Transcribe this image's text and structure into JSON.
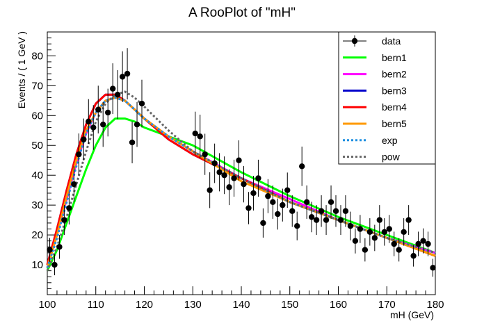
{
  "chart_data": {
    "type": "scatter",
    "title": "A RooPlot of \"mH\"",
    "xlabel": "mH (GeV)",
    "ylabel": "Events / ( 1 GeV )",
    "xlim": [
      100,
      180
    ],
    "ylim": [
      0,
      88
    ],
    "xticks": [
      100,
      110,
      120,
      130,
      140,
      150,
      160,
      170,
      180
    ],
    "yticks": [
      10,
      20,
      30,
      40,
      50,
      60,
      70,
      80
    ],
    "legend_position": "top-right",
    "data_points": [
      {
        "x": 100.5,
        "y": 15,
        "err": 4
      },
      {
        "x": 101.5,
        "y": 10,
        "err": 3.5
      },
      {
        "x": 102.5,
        "y": 16,
        "err": 4
      },
      {
        "x": 103.5,
        "y": 25,
        "err": 5
      },
      {
        "x": 104.5,
        "y": 29,
        "err": 5.5
      },
      {
        "x": 105.5,
        "y": 37,
        "err": 6
      },
      {
        "x": 106.5,
        "y": 47,
        "err": 7
      },
      {
        "x": 107.5,
        "y": 52,
        "err": 7
      },
      {
        "x": 108.5,
        "y": 58,
        "err": 7.5
      },
      {
        "x": 109.5,
        "y": 56,
        "err": 7.5
      },
      {
        "x": 110.5,
        "y": 62,
        "err": 8
      },
      {
        "x": 111.5,
        "y": 57,
        "err": 7.5
      },
      {
        "x": 112.5,
        "y": 61,
        "err": 8
      },
      {
        "x": 113.5,
        "y": 69,
        "err": 8.5
      },
      {
        "x": 114.5,
        "y": 67,
        "err": 8.2
      },
      {
        "x": 115.5,
        "y": 73,
        "err": 8.5
      },
      {
        "x": 116.5,
        "y": 74,
        "err": 8.6
      },
      {
        "x": 117.5,
        "y": 51,
        "err": 7
      },
      {
        "x": 118.5,
        "y": 57,
        "err": 7.5
      },
      {
        "x": 119.5,
        "y": 64,
        "err": 8
      },
      {
        "x": 130.5,
        "y": 54,
        "err": 7.3
      },
      {
        "x": 131.5,
        "y": 53,
        "err": 7.3
      },
      {
        "x": 132.5,
        "y": 47,
        "err": 6.9
      },
      {
        "x": 133.5,
        "y": 35,
        "err": 6
      },
      {
        "x": 134.5,
        "y": 44,
        "err": 6.6
      },
      {
        "x": 135.5,
        "y": 41,
        "err": 6.4
      },
      {
        "x": 136.5,
        "y": 40,
        "err": 6.3
      },
      {
        "x": 137.5,
        "y": 36,
        "err": 6
      },
      {
        "x": 138.5,
        "y": 39,
        "err": 6.2
      },
      {
        "x": 139.5,
        "y": 45,
        "err": 6.7
      },
      {
        "x": 140.5,
        "y": 37,
        "err": 6.1
      },
      {
        "x": 141.5,
        "y": 29,
        "err": 5.4
      },
      {
        "x": 142.5,
        "y": 34,
        "err": 5.8
      },
      {
        "x": 143.5,
        "y": 39,
        "err": 6.2
      },
      {
        "x": 144.5,
        "y": 24,
        "err": 4.9
      },
      {
        "x": 145.5,
        "y": 33,
        "err": 5.7
      },
      {
        "x": 146.5,
        "y": 31,
        "err": 5.6
      },
      {
        "x": 147.5,
        "y": 27,
        "err": 5.2
      },
      {
        "x": 148.5,
        "y": 30,
        "err": 5.5
      },
      {
        "x": 149.5,
        "y": 35,
        "err": 5.9
      },
      {
        "x": 150.5,
        "y": 28,
        "err": 5.3
      },
      {
        "x": 151.5,
        "y": 23,
        "err": 4.8
      },
      {
        "x": 152.5,
        "y": 43,
        "err": 6.6
      },
      {
        "x": 153.5,
        "y": 31,
        "err": 5.6
      },
      {
        "x": 154.5,
        "y": 26,
        "err": 5.1
      },
      {
        "x": 155.5,
        "y": 25,
        "err": 5
      },
      {
        "x": 156.5,
        "y": 28,
        "err": 5.3
      },
      {
        "x": 157.5,
        "y": 25,
        "err": 5
      },
      {
        "x": 158.5,
        "y": 31,
        "err": 5.6
      },
      {
        "x": 159.5,
        "y": 28,
        "err": 5.3
      },
      {
        "x": 160.5,
        "y": 25,
        "err": 5
      },
      {
        "x": 161.5,
        "y": 28,
        "err": 5.3
      },
      {
        "x": 162.5,
        "y": 23,
        "err": 4.8
      },
      {
        "x": 163.5,
        "y": 18,
        "err": 4.2
      },
      {
        "x": 164.5,
        "y": 22,
        "err": 4.7
      },
      {
        "x": 165.5,
        "y": 15,
        "err": 3.9
      },
      {
        "x": 166.5,
        "y": 21,
        "err": 4.6
      },
      {
        "x": 167.5,
        "y": 19,
        "err": 4.4
      },
      {
        "x": 168.5,
        "y": 25,
        "err": 5
      },
      {
        "x": 169.5,
        "y": 21,
        "err": 4.6
      },
      {
        "x": 170.5,
        "y": 22,
        "err": 4.7
      },
      {
        "x": 171.5,
        "y": 17,
        "err": 4.1
      },
      {
        "x": 172.5,
        "y": 15,
        "err": 3.9
      },
      {
        "x": 173.5,
        "y": 21,
        "err": 4.6
      },
      {
        "x": 174.5,
        "y": 25,
        "err": 5
      },
      {
        "x": 175.5,
        "y": 13,
        "err": 3.6
      },
      {
        "x": 176.5,
        "y": 17,
        "err": 4.1
      },
      {
        "x": 177.5,
        "y": 18,
        "err": 4.2
      },
      {
        "x": 178.5,
        "y": 17,
        "err": 4.1
      },
      {
        "x": 179.5,
        "y": 9,
        "err": 3
      }
    ],
    "series": [
      {
        "name": "bern1",
        "color": "#00ff00",
        "dash": "solid",
        "x": [
          100,
          102,
          104,
          106,
          108,
          110,
          112,
          114,
          116,
          118,
          120,
          125,
          130,
          140,
          150,
          160,
          170,
          180
        ],
        "y": [
          8,
          15,
          24,
          33,
          42,
          50,
          56,
          59,
          59,
          58,
          56,
          53,
          50,
          41,
          33,
          26,
          20,
          14
        ]
      },
      {
        "name": "bern2",
        "color": "#ff00ff",
        "dash": "solid",
        "x": [
          100,
          102,
          104,
          106,
          108,
          110,
          112,
          114,
          116,
          118,
          120,
          125,
          130,
          140,
          150,
          160,
          170,
          180
        ],
        "y": [
          9,
          20,
          32,
          44,
          54,
          61,
          65,
          66,
          65,
          62,
          59,
          53,
          48,
          39,
          32,
          25,
          19,
          14
        ]
      },
      {
        "name": "bern3",
        "color": "#0000cc",
        "dash": "solid",
        "x": [
          100,
          102,
          104,
          106,
          108,
          110,
          112,
          114,
          116,
          118,
          120,
          125,
          130,
          140,
          150,
          160,
          170,
          180
        ],
        "y": [
          10,
          22,
          35,
          47,
          57,
          64,
          67,
          67,
          65,
          62,
          59,
          52,
          47,
          39,
          31,
          25,
          19,
          13
        ]
      },
      {
        "name": "bern4",
        "color": "#ff0000",
        "dash": "solid",
        "x": [
          100,
          102,
          104,
          106,
          108,
          110,
          112,
          114,
          116,
          118,
          120,
          125,
          130,
          140,
          150,
          160,
          170,
          180
        ],
        "y": [
          10,
          22,
          35,
          47,
          57,
          64,
          67,
          67,
          65,
          62,
          59,
          52,
          47,
          39,
          31,
          25,
          19,
          13
        ]
      },
      {
        "name": "bern5",
        "color": "#ff9900",
        "dash": "solid",
        "x": [
          100,
          102,
          104,
          106,
          108,
          110,
          112,
          114,
          116,
          118,
          120,
          125,
          130,
          140,
          150,
          160,
          170,
          180
        ],
        "y": [
          9,
          20,
          33,
          45,
          55,
          61,
          65,
          66,
          65,
          62,
          59,
          53,
          48,
          38,
          31,
          25,
          19,
          13
        ]
      },
      {
        "name": "exp",
        "color": "#1f8fe0",
        "dash": "dotted",
        "x": [
          100,
          102,
          104,
          106,
          108,
          110,
          112,
          114,
          116,
          118,
          120,
          125,
          130,
          140,
          150,
          160,
          170,
          180
        ],
        "y": [
          9,
          19,
          31,
          43,
          54,
          61,
          65,
          66,
          65,
          62,
          59,
          53,
          48,
          39,
          31,
          25,
          19,
          14
        ]
      },
      {
        "name": "pow",
        "color": "#666666",
        "dash": "dotted",
        "x": [
          100,
          102,
          104,
          106,
          108,
          110,
          112,
          114,
          116,
          118,
          120,
          125,
          130,
          140,
          150,
          160,
          170,
          180
        ],
        "y": [
          8,
          16,
          26,
          37,
          48,
          58,
          64,
          67,
          68,
          66,
          63,
          55,
          48,
          39,
          31,
          25,
          19,
          14
        ]
      }
    ],
    "legend": [
      {
        "label": "data",
        "kind": "marker",
        "color": "#000000"
      },
      {
        "label": "bern1",
        "kind": "line",
        "color": "#00ff00",
        "dash": "solid"
      },
      {
        "label": "bern2",
        "kind": "line",
        "color": "#ff00ff",
        "dash": "solid"
      },
      {
        "label": "bern3",
        "kind": "line",
        "color": "#0000cc",
        "dash": "solid"
      },
      {
        "label": "bern4",
        "kind": "line",
        "color": "#ff0000",
        "dash": "solid"
      },
      {
        "label": "bern5",
        "kind": "line",
        "color": "#ff9900",
        "dash": "solid"
      },
      {
        "label": "exp",
        "kind": "line",
        "color": "#1f8fe0",
        "dash": "dotted"
      },
      {
        "label": "pow",
        "kind": "line",
        "color": "#666666",
        "dash": "dotted"
      }
    ]
  }
}
